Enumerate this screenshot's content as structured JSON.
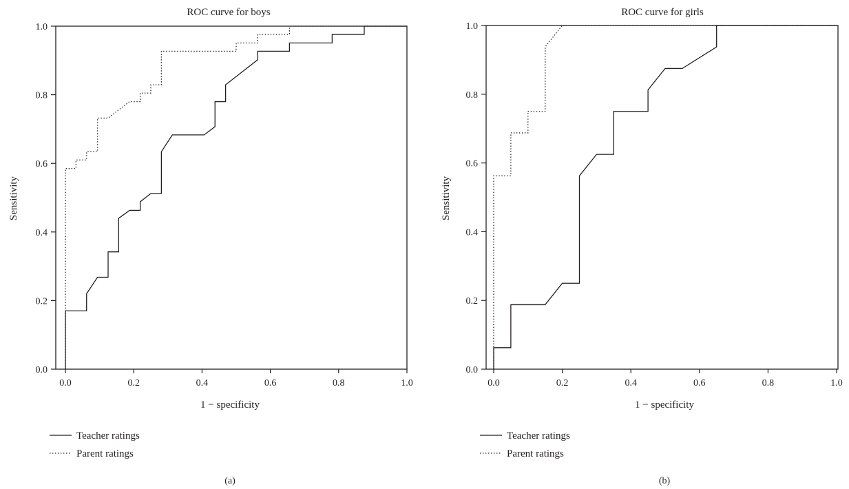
{
  "chart_data": [
    {
      "type": "line",
      "panel_label": "(a)",
      "title": "ROC curve for boys",
      "xlabel": "1 − specificity",
      "ylabel": "Sensitivity",
      "xlim": [
        0,
        1
      ],
      "ylim": [
        0,
        1
      ],
      "x_ticks": [
        "0.0",
        "0.2",
        "0.4",
        "0.6",
        "0.8",
        "1.0"
      ],
      "y_ticks": [
        "0.0",
        "0.2",
        "0.4",
        "0.6",
        "0.8",
        "1.0"
      ],
      "grid": false,
      "legend_position": "bottom-left, below plot",
      "series": [
        {
          "name": "Teacher ratings",
          "line_style": "solid",
          "x": [
            0,
            0,
            0.062,
            0.062,
            0.094,
            0.125,
            0.125,
            0.156,
            0.156,
            0.188,
            0.219,
            0.219,
            0.25,
            0.281,
            0.281,
            0.313,
            0.406,
            0.438,
            0.438,
            0.469,
            0.469,
            0.563,
            0.563,
            0.656,
            0.656,
            0.781,
            0.781,
            0.875,
            0.875,
            1.0
          ],
          "y": [
            0,
            0.17,
            0.17,
            0.22,
            0.268,
            0.268,
            0.342,
            0.342,
            0.44,
            0.463,
            0.463,
            0.488,
            0.512,
            0.512,
            0.634,
            0.683,
            0.683,
            0.707,
            0.78,
            0.78,
            0.829,
            0.902,
            0.927,
            0.927,
            0.951,
            0.951,
            0.976,
            0.976,
            1.0,
            1.0
          ]
        },
        {
          "name": "Parent ratings",
          "line_style": "dotted",
          "x": [
            0,
            0,
            0.031,
            0.031,
            0.062,
            0.062,
            0.094,
            0.094,
            0.125,
            0.125,
            0.156,
            0.156,
            0.188,
            0.219,
            0.219,
            0.25,
            0.25,
            0.281,
            0.281,
            0.5,
            0.5,
            0.563,
            0.563,
            0.625,
            0.625,
            0.656,
            0.656,
            1.0
          ],
          "y": [
            0,
            0.585,
            0.585,
            0.61,
            0.61,
            0.634,
            0.634,
            0.732,
            0.732,
            0.732,
            0.756,
            0.756,
            0.78,
            0.78,
            0.805,
            0.805,
            0.829,
            0.829,
            0.927,
            0.927,
            0.951,
            0.951,
            0.976,
            0.976,
            0.976,
            0.976,
            1.0,
            1.0
          ]
        }
      ]
    },
    {
      "type": "line",
      "panel_label": "(b)",
      "title": "ROC curve for girls",
      "xlabel": "1 − specificity",
      "ylabel": "Sensitivity",
      "xlim": [
        0,
        1
      ],
      "ylim": [
        0,
        1
      ],
      "x_ticks": [
        "0.0",
        "0.2",
        "0.4",
        "0.6",
        "0.8",
        "1.0"
      ],
      "y_ticks": [
        "0.0",
        "0.2",
        "0.4",
        "0.6",
        "0.8",
        "1.0"
      ],
      "grid": false,
      "legend_position": "bottom-left, below plot",
      "series": [
        {
          "name": "Teacher ratings",
          "line_style": "solid",
          "x": [
            0,
            0,
            0.05,
            0.05,
            0.15,
            0.2,
            0.25,
            0.25,
            0.3,
            0.35,
            0.35,
            0.45,
            0.45,
            0.5,
            0.55,
            0.65,
            0.65,
            1.0
          ],
          "y": [
            0,
            0.0625,
            0.0625,
            0.1875,
            0.1875,
            0.25,
            0.25,
            0.5625,
            0.625,
            0.625,
            0.75,
            0.75,
            0.8125,
            0.875,
            0.875,
            0.9375,
            1.0,
            1.0
          ]
        },
        {
          "name": "Parent ratings",
          "line_style": "dotted",
          "x": [
            0,
            0,
            0.05,
            0.05,
            0.1,
            0.1,
            0.15,
            0.15,
            0.2,
            1.0
          ],
          "y": [
            0,
            0.5625,
            0.5625,
            0.6875,
            0.6875,
            0.75,
            0.75,
            0.9375,
            1.0,
            1.0
          ]
        }
      ]
    }
  ]
}
